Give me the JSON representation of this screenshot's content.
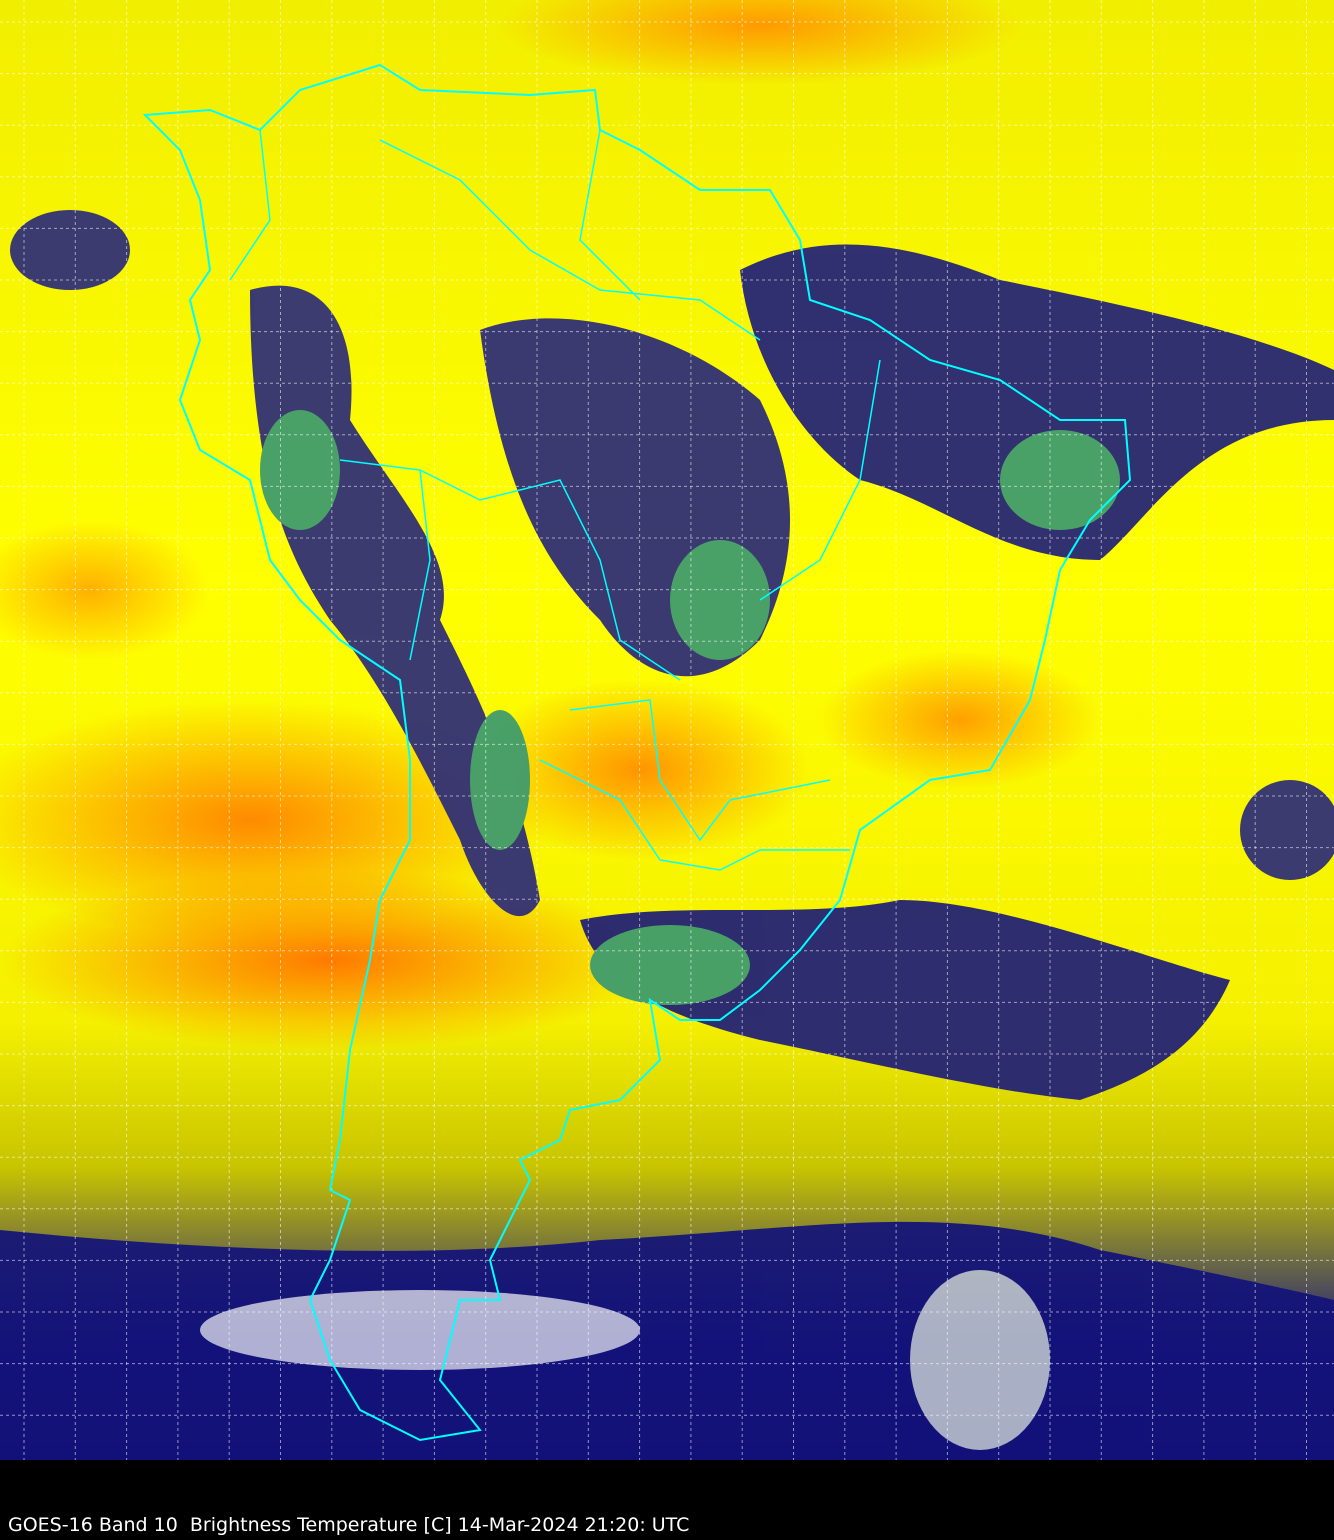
{
  "caption": "GOES-16 Band 10  Brightness Temperature [C] 14-Mar-2024 21:20: UTC",
  "colors": {
    "warm": "#ff9a00",
    "mid": "#ffff00",
    "cloud_dark": "#1a1a80",
    "cloud_cold": "#2e8b57",
    "coastline": "#00ffff",
    "grid": "#ffffff",
    "background": "#000000"
  }
}
